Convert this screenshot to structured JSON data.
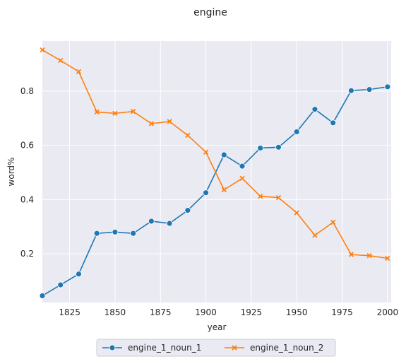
{
  "chart_data": {
    "type": "line",
    "title": "engine",
    "xlabel": "year",
    "ylabel": "word%",
    "xlim": [
      1810,
      2002
    ],
    "ylim": [
      0.02,
      0.985
    ],
    "xticks": [
      1825,
      1850,
      1875,
      1900,
      1925,
      1950,
      1975,
      2000
    ],
    "yticks": [
      0.2,
      0.4,
      0.6,
      0.8
    ],
    "grid": true,
    "legend_position": "bottom-center",
    "x": [
      1810,
      1820,
      1830,
      1840,
      1850,
      1860,
      1870,
      1880,
      1890,
      1900,
      1910,
      1920,
      1930,
      1940,
      1950,
      1960,
      1970,
      1980,
      1990,
      2000
    ],
    "series": [
      {
        "name": "engine_1_noun_1",
        "color": "#1f77b4",
        "marker": "circle",
        "values": [
          0.045,
          0.085,
          0.125,
          0.275,
          0.28,
          0.275,
          0.32,
          0.312,
          0.36,
          0.425,
          0.565,
          0.523,
          0.59,
          0.593,
          0.65,
          0.733,
          0.683,
          0.802,
          0.806,
          0.816
        ]
      },
      {
        "name": "engine_1_noun_2",
        "color": "#ff7f0e",
        "marker": "x",
        "values": [
          0.952,
          0.913,
          0.872,
          0.723,
          0.718,
          0.725,
          0.68,
          0.688,
          0.637,
          0.575,
          0.436,
          0.478,
          0.412,
          0.407,
          0.351,
          0.268,
          0.316,
          0.197,
          0.193,
          0.183
        ]
      }
    ]
  },
  "style": {
    "plot_background": "#eaeaf2",
    "grid_color": "#ffffff"
  }
}
